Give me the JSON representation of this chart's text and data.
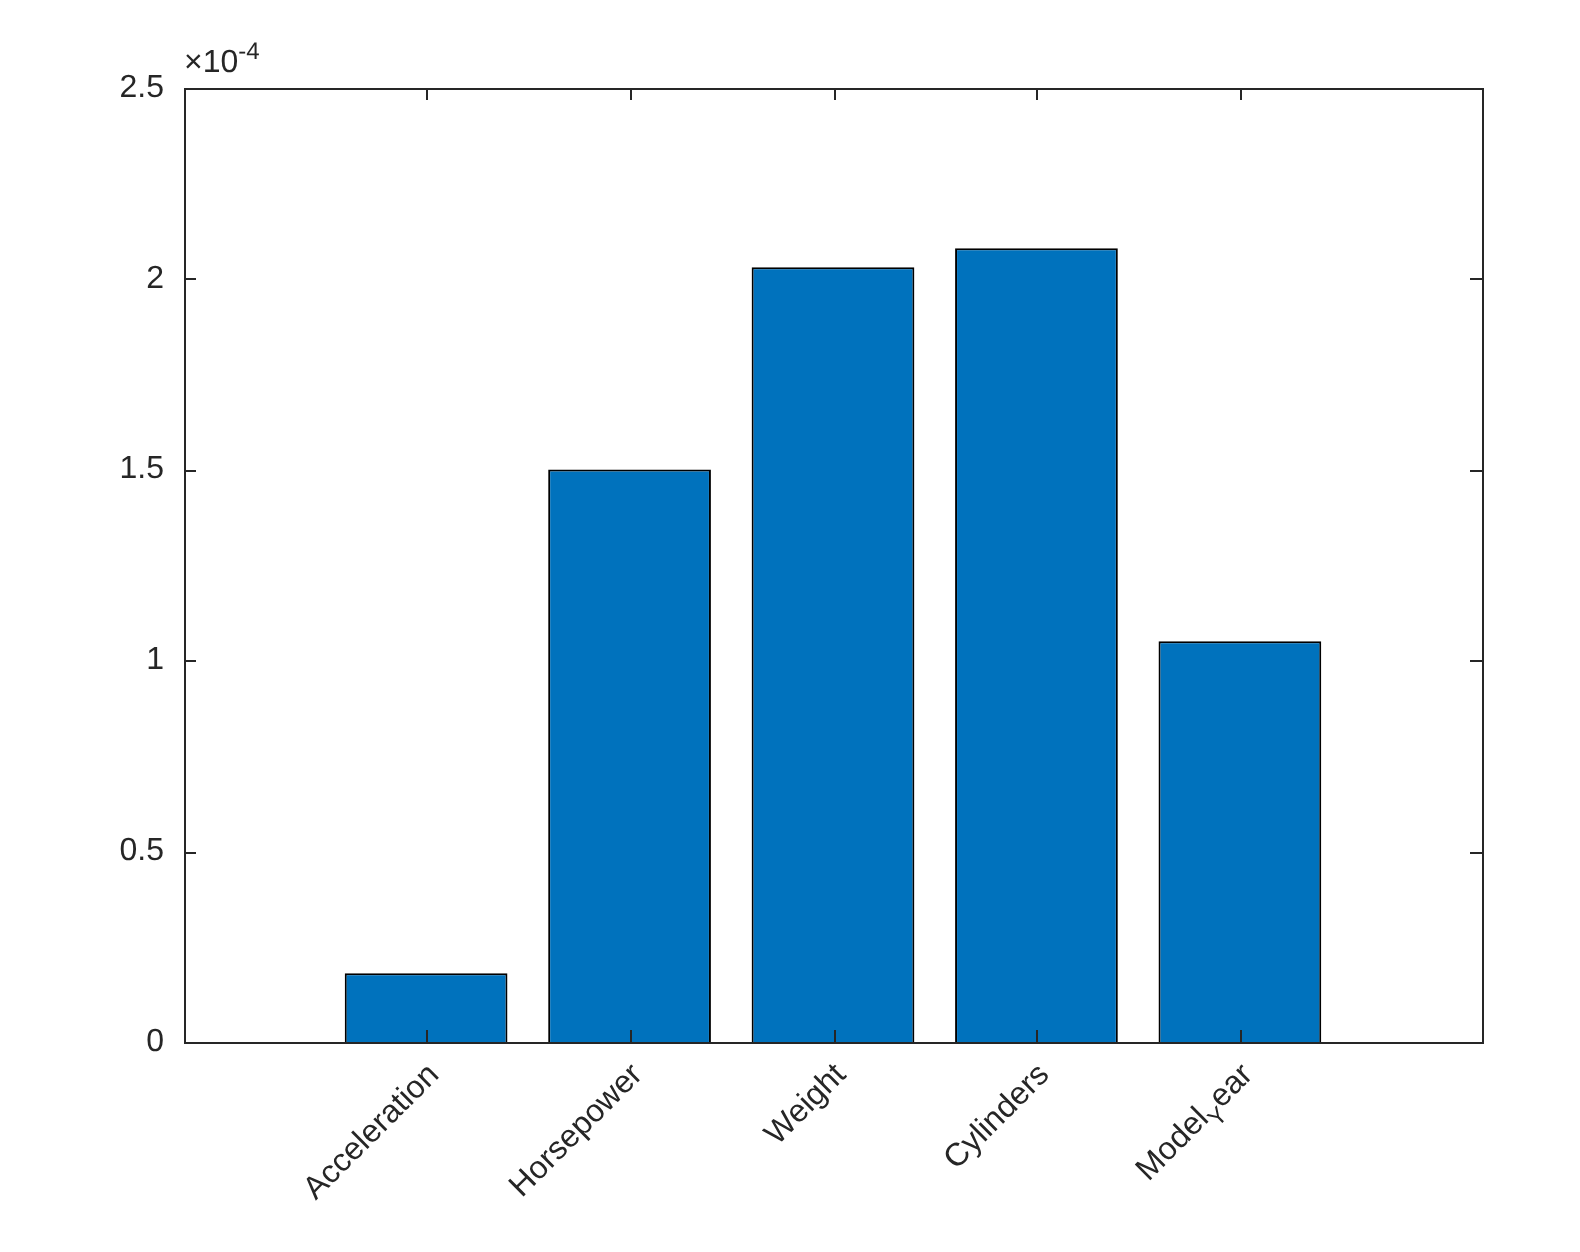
{
  "chart_data": {
    "type": "bar",
    "categories": [
      "Acceleration",
      "Horsepower",
      "Weight",
      "Cylinders",
      "Model$_{Y}$ear"
    ],
    "values": [
      0.18,
      1.5,
      2.03,
      2.08,
      1.05
    ],
    "color": "#0072bd",
    "ylim": [
      0,
      2.5
    ],
    "yticks": [
      0,
      0.5,
      1,
      1.5,
      2,
      2.5
    ],
    "annotations": [
      "×10$^{-4}$"
    ],
    "grid": false,
    "legend": false
  }
}
